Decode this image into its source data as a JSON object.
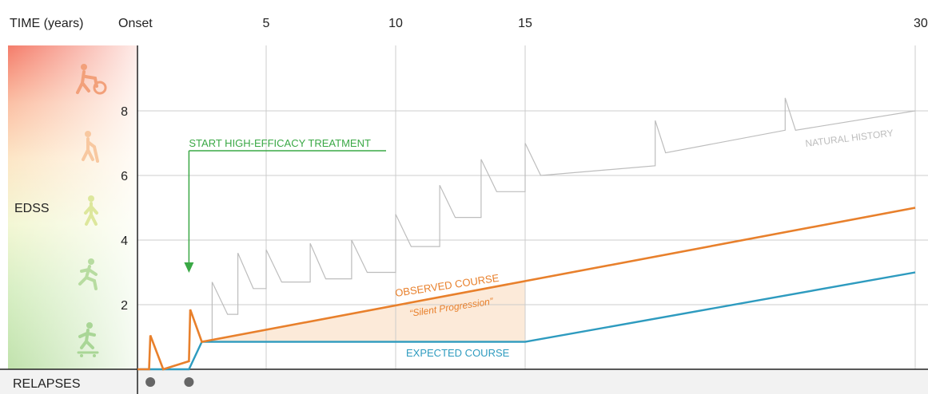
{
  "chart_data": {
    "type": "line",
    "x_axis": {
      "label": "TIME (years)",
      "onset_label": "Onset",
      "ticks": [
        5,
        10,
        15,
        30
      ],
      "range": [
        0,
        30
      ]
    },
    "y_axis": {
      "label": "EDSS",
      "ticks": [
        2,
        4,
        6,
        8
      ],
      "range": [
        0,
        10
      ]
    },
    "relapses": {
      "label": "RELAPSES",
      "times": [
        0.5,
        2.0
      ]
    },
    "treatment_annotation": {
      "label": "START HIGH-EFFICACY TREATMENT",
      "time": 2.0
    },
    "series": [
      {
        "name": "NATURAL HISTORY",
        "color": "#bdbdbd",
        "points": [
          [
            2.9,
            0.9
          ],
          [
            2.9,
            2.7
          ],
          [
            3.5,
            1.7
          ],
          [
            3.9,
            1.7
          ],
          [
            3.9,
            3.6
          ],
          [
            4.5,
            2.5
          ],
          [
            5.0,
            2.5
          ],
          [
            5.0,
            3.7
          ],
          [
            5.6,
            2.7
          ],
          [
            6.7,
            2.7
          ],
          [
            6.7,
            3.9
          ],
          [
            7.3,
            2.8
          ],
          [
            8.3,
            2.8
          ],
          [
            8.3,
            4.0
          ],
          [
            8.9,
            3.0
          ],
          [
            10.0,
            3.0
          ],
          [
            10.0,
            4.8
          ],
          [
            10.6,
            3.8
          ],
          [
            11.7,
            3.8
          ],
          [
            11.7,
            5.7
          ],
          [
            12.3,
            4.7
          ],
          [
            13.3,
            4.7
          ],
          [
            13.3,
            6.5
          ],
          [
            13.9,
            5.5
          ],
          [
            15.0,
            5.5
          ],
          [
            15.0,
            7.0
          ],
          [
            15.6,
            6.0
          ],
          [
            20.0,
            6.3
          ],
          [
            20.0,
            7.7
          ],
          [
            20.4,
            6.7
          ],
          [
            25.0,
            7.4
          ],
          [
            25.0,
            8.4
          ],
          [
            25.4,
            7.4
          ],
          [
            30.0,
            8.0
          ]
        ]
      },
      {
        "name": "OBSERVED COURSE",
        "subtitle": "“Silent Progression”",
        "color": "#e8802c",
        "points": [
          [
            0.0,
            0.0
          ],
          [
            0.45,
            0.0
          ],
          [
            0.5,
            1.05
          ],
          [
            1.0,
            0.0
          ],
          [
            2.0,
            0.25
          ],
          [
            2.05,
            1.85
          ],
          [
            2.5,
            0.85
          ],
          [
            30.0,
            5.0
          ]
        ]
      },
      {
        "name": "EXPECTED COURSE",
        "color": "#2e9bbf",
        "points": [
          [
            0.0,
            0.0
          ],
          [
            2.0,
            0.0
          ],
          [
            2.5,
            0.85
          ],
          [
            15.0,
            0.85
          ],
          [
            30.0,
            3.0
          ]
        ]
      }
    ],
    "shaded_region": {
      "color": "#fbe3cc",
      "x_range": [
        2.5,
        15.0
      ]
    },
    "colors": {
      "grid": "#cccccc",
      "axis": "#222222",
      "treatment": "#3aa845",
      "relapse_dot": "#666666",
      "relapse_band": "#f2f2f2"
    },
    "icons": [
      "wheelchair-assist-icon",
      "walking-cane-icon",
      "walking-icon",
      "running-icon",
      "skateboarding-icon"
    ]
  }
}
